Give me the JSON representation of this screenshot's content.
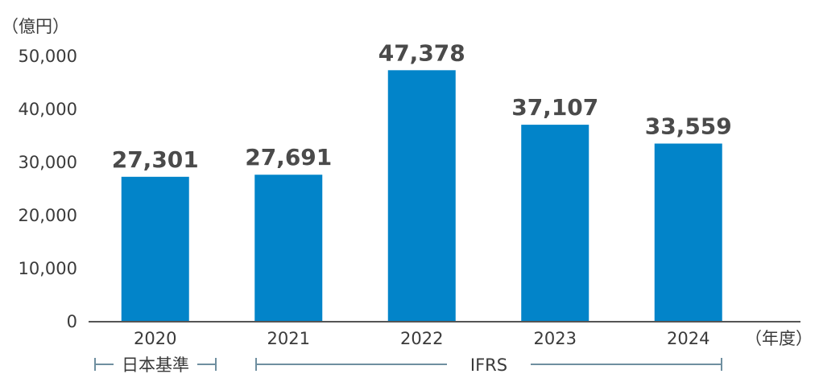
{
  "chart_data": {
    "type": "bar",
    "categories": [
      "2020",
      "2021",
      "2022",
      "2023",
      "2024"
    ],
    "values": [
      27301,
      27691,
      47378,
      37107,
      33559
    ],
    "data_labels": [
      "27,301",
      "27,691",
      "47,378",
      "37,107",
      "33,559"
    ],
    "y_unit": "（億円）",
    "x_unit": "（年度）",
    "y_ticks": [
      {
        "value": 0,
        "label": "0"
      },
      {
        "value": 10000,
        "label": "10,000"
      },
      {
        "value": 20000,
        "label": "20,000"
      },
      {
        "value": 30000,
        "label": "30,000"
      },
      {
        "value": 40000,
        "label": "40,000"
      },
      {
        "value": 50000,
        "label": "50,000"
      }
    ],
    "ylim": [
      0,
      50000
    ],
    "grid": false,
    "bar_color": "#0284c9",
    "accounting_standards": [
      {
        "label": "日本基準",
        "from_category": "2020",
        "to_category": "2020"
      },
      {
        "label": "IFRS",
        "from_category": "2021",
        "to_category": "2024"
      }
    ]
  }
}
